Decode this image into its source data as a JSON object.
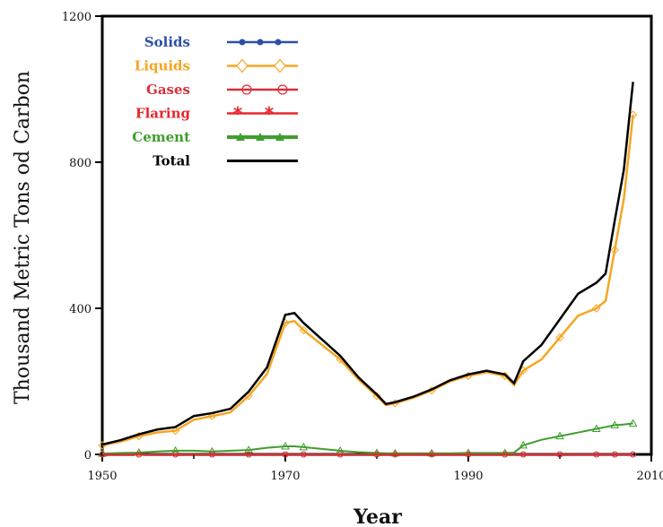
{
  "chart_data": {
    "type": "line",
    "title": "",
    "xlabel": "Year",
    "ylabel": "Thousand Metric Tons od Carbon",
    "xlim": [
      1950,
      2010
    ],
    "ylim": [
      0,
      1200
    ],
    "x_ticks": [
      "1950",
      "1970",
      "1990",
      "2010"
    ],
    "y_ticks": [
      "0",
      "400",
      "800",
      "1200"
    ],
    "grid": false,
    "legend_position": "top-left",
    "x": [
      1950,
      1952,
      1954,
      1956,
      1958,
      1960,
      1962,
      1964,
      1966,
      1968,
      1970,
      1971,
      1972,
      1974,
      1976,
      1978,
      1980,
      1981,
      1982,
      1984,
      1986,
      1988,
      1990,
      1992,
      1994,
      1995,
      1996,
      1998,
      2000,
      2002,
      2004,
      2005,
      2006,
      2007,
      2008
    ],
    "series": [
      {
        "name": "Solids",
        "color": "#2e4fa8",
        "marker": "filled-circle",
        "values": [
          0,
          0,
          0,
          0,
          0,
          0,
          0,
          0,
          0,
          0,
          0,
          0,
          0,
          0,
          0,
          0,
          0,
          0,
          0,
          0,
          0,
          0,
          0,
          0,
          0,
          0,
          0,
          0,
          0,
          0,
          0,
          0,
          0,
          0,
          0
        ]
      },
      {
        "name": "Liquids",
        "color": "#f5a623",
        "marker": "open-diamond",
        "values": [
          25,
          35,
          50,
          60,
          65,
          95,
          105,
          115,
          160,
          220,
          360,
          365,
          340,
          300,
          260,
          205,
          160,
          135,
          140,
          155,
          175,
          200,
          215,
          225,
          215,
          190,
          230,
          260,
          320,
          380,
          400,
          420,
          560,
          700,
          930
        ]
      },
      {
        "name": "Gases",
        "color": "#d9303b",
        "marker": "open-circle",
        "values": [
          0,
          0,
          0,
          0,
          0,
          0,
          0,
          0,
          0,
          0,
          0,
          0,
          0,
          0,
          0,
          0,
          0,
          0,
          0,
          0,
          0,
          0,
          0,
          0,
          0,
          0,
          0,
          0,
          0,
          0,
          0,
          0,
          0,
          0,
          0
        ]
      },
      {
        "name": "Flaring",
        "color": "#e8262d",
        "marker": "asterisk",
        "values": [
          0,
          0,
          0,
          0,
          0,
          0,
          0,
          0,
          0,
          0,
          0,
          0,
          0,
          0,
          0,
          0,
          0,
          0,
          0,
          0,
          0,
          0,
          0,
          0,
          0,
          0,
          0,
          0,
          0,
          0,
          0,
          0,
          0,
          0,
          0
        ]
      },
      {
        "name": "Cement",
        "color": "#3f9e2e",
        "marker": "filled-triangle",
        "values": [
          2,
          4,
          5,
          8,
          10,
          10,
          8,
          10,
          12,
          18,
          22,
          22,
          20,
          15,
          10,
          6,
          4,
          3,
          3,
          3,
          3,
          3,
          4,
          4,
          4,
          5,
          25,
          40,
          50,
          60,
          70,
          75,
          80,
          82,
          85
        ]
      },
      {
        "name": "Total",
        "color": "#000000",
        "marker": "none",
        "values": [
          27,
          39,
          55,
          68,
          75,
          105,
          113,
          125,
          172,
          238,
          382,
          387,
          360,
          315,
          270,
          211,
          164,
          138,
          143,
          158,
          178,
          203,
          219,
          229,
          219,
          195,
          255,
          300,
          370,
          440,
          470,
          495,
          640,
          780,
          1020
        ]
      }
    ]
  }
}
